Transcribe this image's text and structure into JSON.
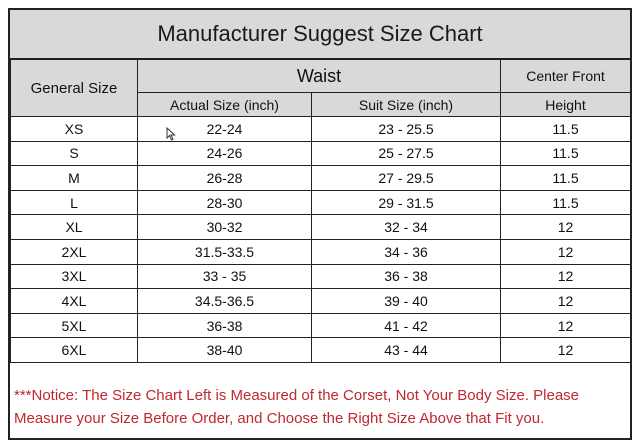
{
  "title": "Manufacturer Suggest Size Chart",
  "headers": {
    "general_size": "General Size",
    "waist": "Waist",
    "center_front_line1": "Center Front",
    "actual_size": "Actual Size (inch)",
    "suit_size": "Suit Size (inch)",
    "height": "Height"
  },
  "rows": [
    {
      "size": "XS",
      "actual": "22-24",
      "suit": "23 - 25.5",
      "height": "11.5"
    },
    {
      "size": "S",
      "actual": "24-26",
      "suit": "25 - 27.5",
      "height": "11.5"
    },
    {
      "size": "M",
      "actual": "26-28",
      "suit": "27 - 29.5",
      "height": "11.5"
    },
    {
      "size": "L",
      "actual": "28-30",
      "suit": "29 - 31.5",
      "height": "11.5"
    },
    {
      "size": "XL",
      "actual": "30-32",
      "suit": "32 - 34",
      "height": "12"
    },
    {
      "size": "2XL",
      "actual": "31.5-33.5",
      "suit": "34 - 36",
      "height": "12"
    },
    {
      "size": "3XL",
      "actual": "33 - 35",
      "suit": "36 - 38",
      "height": "12"
    },
    {
      "size": "4XL",
      "actual": "34.5-36.5",
      "suit": "39 - 40",
      "height": "12"
    },
    {
      "size": "5XL",
      "actual": "36-38",
      "suit": "41 - 42",
      "height": "12"
    },
    {
      "size": "6XL",
      "actual": "38-40",
      "suit": "43 - 44",
      "height": "12"
    }
  ],
  "notice": "***Notice:  The Size Chart Left is Measured of the Corset, Not Your Body Size.  Please Measure your Size Before Order, and Choose the Right Size Above that Fit you.",
  "colors": {
    "header_bg": "#d9d9d9",
    "notice_text": "#c0282e",
    "border": "#222222"
  },
  "cursor_icon": "mouse-pointer-icon"
}
